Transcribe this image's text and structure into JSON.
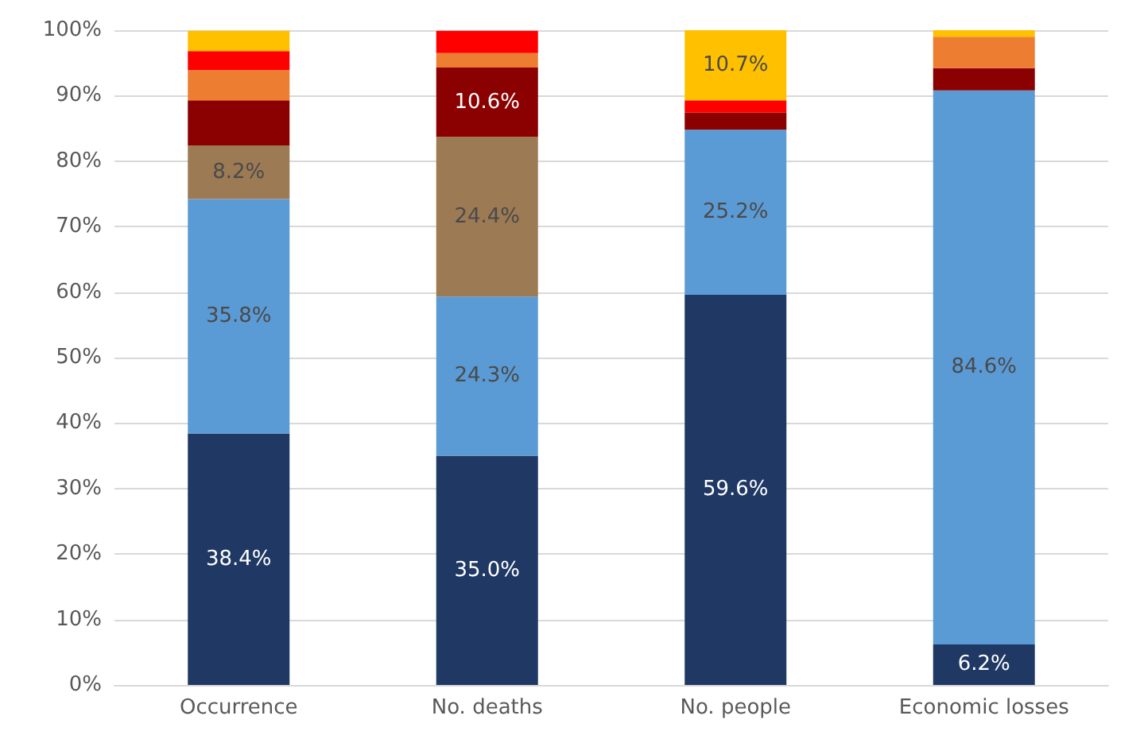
{
  "chart_data": {
    "type": "bar",
    "stacked": true,
    "categories": [
      "Occurrence",
      "No. deaths",
      "No. people",
      "Economic losses"
    ],
    "series": [
      {
        "color": "#1f3864",
        "values": [
          38.4,
          35.0,
          59.6,
          6.2
        ],
        "value_labels": [
          "38.4%",
          "35.0%",
          "59.6%",
          "6.2%"
        ]
      },
      {
        "color": "#5b9bd5",
        "values": [
          35.8,
          24.3,
          25.2,
          84.6
        ],
        "value_labels": [
          "35.8%",
          "24.3%",
          "25.2%",
          "84.6%"
        ]
      },
      {
        "color": "#9c7a54",
        "values": [
          8.2,
          24.4,
          0,
          0
        ],
        "value_labels": [
          "8.2%",
          "24.4%",
          null,
          null
        ]
      },
      {
        "color": "#8b0000",
        "values": [
          6.9,
          10.6,
          2.6,
          3.4
        ],
        "value_labels": [
          null,
          "10.6%",
          null,
          null
        ]
      },
      {
        "color": "#ed7d31",
        "values": [
          4.6,
          2.2,
          0,
          4.8
        ],
        "value_labels": [
          null,
          null,
          null,
          null
        ]
      },
      {
        "color": "#ff0000",
        "values": [
          2.9,
          3.4,
          1.9,
          0
        ],
        "value_labels": [
          null,
          null,
          null,
          null
        ]
      },
      {
        "color": "#ffc000",
        "values": [
          3.1,
          0,
          10.7,
          1.0
        ],
        "value_labels": [
          null,
          null,
          "10.7%",
          null
        ]
      }
    ],
    "ylim": [
      0,
      100
    ],
    "yticks": [
      {
        "value": 0,
        "label": "0%"
      },
      {
        "value": 10,
        "label": "10%"
      },
      {
        "value": 20,
        "label": "20%"
      },
      {
        "value": 30,
        "label": "30%"
      },
      {
        "value": 40,
        "label": "40%"
      },
      {
        "value": 50,
        "label": "50%"
      },
      {
        "value": 60,
        "label": "60%"
      },
      {
        "value": 70,
        "label": "70%"
      },
      {
        "value": 80,
        "label": "80%"
      },
      {
        "value": 90,
        "label": "90%"
      },
      {
        "value": 100,
        "label": "100%"
      }
    ],
    "grid": "y"
  }
}
